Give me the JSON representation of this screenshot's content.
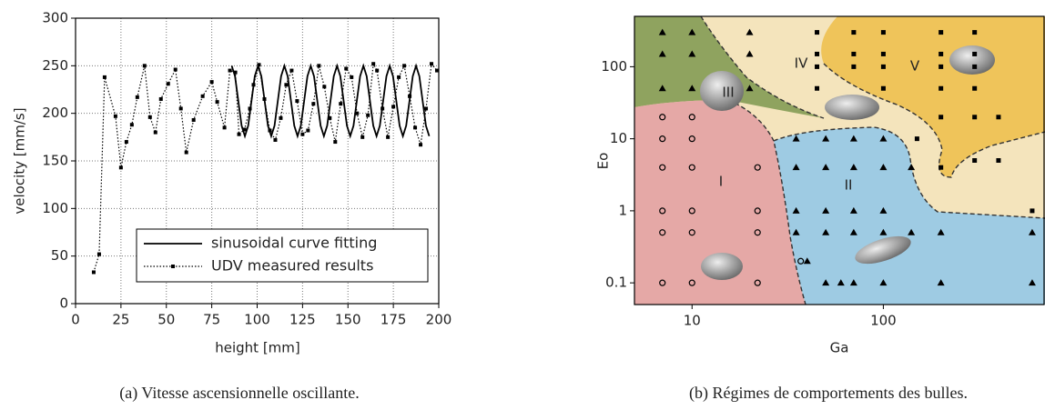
{
  "chart_data": [
    {
      "type": "line",
      "caption": "(a) Vitesse ascensionnelle oscillante.",
      "x_label": "height [mm]",
      "y_label": "velocity [mm/s]",
      "xlim": [
        0,
        200
      ],
      "ylim": [
        0,
        300
      ],
      "xticks": [
        0,
        25,
        50,
        75,
        100,
        125,
        150,
        175,
        200
      ],
      "yticks": [
        0,
        50,
        100,
        150,
        200,
        250,
        300
      ],
      "grid": true,
      "series": [
        {
          "name": "sinusoidal curve fitting",
          "color": "#000000",
          "style": "solid",
          "x": [
            86,
            87.81,
            89.63,
            91.44,
            93.25,
            95.06,
            96.88,
            98.69,
            100.5,
            102.31,
            104.13,
            105.94,
            107.75,
            109.56,
            111.38,
            113.19,
            115,
            116.81,
            118.63,
            120.44,
            122.25,
            124.06,
            125.88,
            127.69,
            129.5,
            131.31,
            133.13,
            134.94,
            136.75,
            138.56,
            140.38,
            142.19,
            144,
            145.81,
            147.63,
            149.44,
            151.25,
            153.06,
            154.88,
            156.69,
            158.5,
            160.31,
            162.13,
            163.94,
            165.75,
            167.56,
            169.38,
            171.19,
            173,
            174.81,
            176.63,
            178.44,
            180.25,
            182.06,
            183.88,
            185.69,
            187.5,
            189.31,
            191.13,
            192.94,
            194.75
          ],
          "values": [
            250,
            239,
            213,
            187,
            176,
            187,
            213,
            239,
            250,
            239,
            213,
            187,
            176,
            187,
            213,
            239,
            250,
            239,
            213,
            187,
            176,
            187,
            213,
            239,
            250,
            239,
            213,
            187,
            176,
            187,
            213,
            239,
            250,
            239,
            213,
            187,
            176,
            187,
            213,
            239,
            250,
            239,
            213,
            187,
            176,
            187,
            213,
            239,
            250,
            239,
            213,
            187,
            176,
            187,
            213,
            239,
            250,
            239,
            213,
            187,
            176
          ]
        },
        {
          "name": "UDV measured results",
          "color": "#000000",
          "style": "dotted",
          "marker": "square",
          "x": [
            10,
            13,
            16,
            22,
            25,
            28,
            31,
            34,
            38,
            41,
            44,
            47,
            51,
            55,
            58,
            61,
            65,
            70,
            75,
            78,
            82,
            85,
            88,
            90,
            93,
            96,
            98,
            101,
            104,
            107,
            110,
            113,
            116,
            119,
            122,
            125,
            128,
            131,
            134,
            137,
            140,
            143,
            146,
            149,
            152,
            155,
            158,
            161,
            164,
            166,
            169,
            172,
            175,
            178,
            181,
            184,
            187,
            190,
            193,
            196,
            199
          ],
          "values": [
            33,
            52,
            238,
            197,
            143,
            170,
            188,
            217,
            250,
            196,
            180,
            215,
            231,
            246,
            205,
            159,
            193,
            218,
            233,
            212,
            185,
            245,
            243,
            178,
            183,
            205,
            230,
            251,
            215,
            182,
            172,
            195,
            230,
            245,
            213,
            178,
            182,
            210,
            250,
            228,
            195,
            170,
            210,
            247,
            238,
            200,
            175,
            198,
            252,
            245,
            205,
            175,
            207,
            238,
            250,
            218,
            185,
            167,
            205,
            252,
            245
          ]
        }
      ]
    },
    {
      "type": "scatter",
      "caption": "(b) Régimes de comportements des bulles.",
      "x_label": "Ga",
      "y_label": "Eo",
      "log_x": true,
      "log_y": true,
      "xlim": [
        5,
        700
      ],
      "ylim": [
        0.05,
        500
      ],
      "xticks": [
        10,
        100
      ],
      "yticks": [
        0.1,
        1,
        10,
        100
      ],
      "regions": [
        {
          "label": "I"
        },
        {
          "label": "II"
        },
        {
          "label": "III"
        },
        {
          "label": "IV"
        },
        {
          "label": "V"
        }
      ],
      "series": [
        {
          "marker": "triangle",
          "color": "#000000",
          "x": [
            7,
            10,
            20,
            7,
            10,
            20,
            7,
            10,
            20,
            35,
            50,
            70,
            100,
            35,
            50,
            70,
            100,
            140,
            35,
            50,
            70,
            100,
            35,
            50,
            70,
            100,
            140,
            200,
            40,
            50,
            60,
            70,
            100,
            200,
            600,
            600
          ],
          "values": [
            300,
            300,
            300,
            150,
            150,
            150,
            50,
            50,
            50,
            10,
            10,
            10,
            10,
            4,
            4,
            4,
            4,
            4,
            1,
            1,
            1,
            1,
            0.5,
            0.5,
            0.5,
            0.5,
            0.5,
            0.5,
            0.2,
            0.1,
            0.1,
            0.1,
            0.1,
            0.1,
            0.1,
            0.5
          ]
        },
        {
          "marker": "circle",
          "color": "#000000",
          "x": [
            7,
            7,
            7,
            7,
            7,
            7,
            10,
            10,
            10,
            10,
            10,
            10,
            22,
            22,
            22,
            22,
            37
          ],
          "values": [
            20,
            10,
            4,
            1,
            0.5,
            0.1,
            20,
            10,
            4,
            1,
            0.5,
            0.1,
            4,
            1,
            0.5,
            0.1,
            0.2
          ]
        },
        {
          "marker": "square",
          "color": "#000000",
          "x": [
            45,
            70,
            100,
            200,
            300,
            45,
            70,
            100,
            200,
            300,
            45,
            70,
            100,
            200,
            300,
            45,
            100,
            200,
            300,
            200,
            300,
            400,
            300,
            400,
            200,
            600,
            150
          ],
          "values": [
            300,
            300,
            300,
            300,
            300,
            150,
            150,
            150,
            150,
            150,
            100,
            100,
            100,
            100,
            100,
            50,
            50,
            50,
            50,
            20,
            20,
            20,
            5,
            5,
            4,
            1,
            10
          ]
        }
      ]
    }
  ]
}
